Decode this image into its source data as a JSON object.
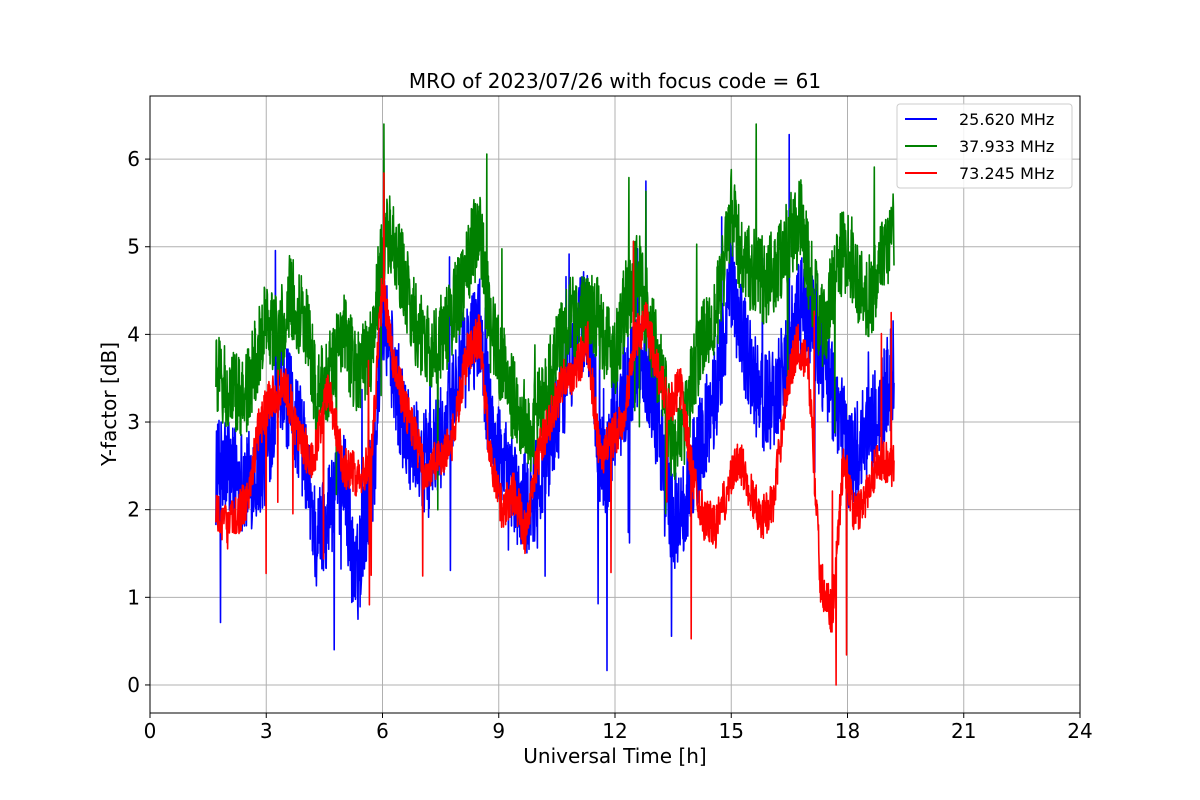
{
  "chart_data": {
    "type": "line",
    "title": "MRO of 2023/07/26 with focus code = 61",
    "xlabel": "Universal Time [h]",
    "ylabel": "Y-factor [dB]",
    "xlim": [
      0,
      24
    ],
    "ylim": [
      -0.32,
      6.72
    ],
    "xticks": [
      0,
      3,
      6,
      9,
      12,
      15,
      18,
      21,
      24
    ],
    "yticks": [
      0,
      1,
      2,
      3,
      4,
      5,
      6
    ],
    "grid": true,
    "legend_position": "top-right",
    "series": [
      {
        "name": "25.620 MHz",
        "color": "#0000ff",
        "band": 0.6,
        "x": [
          1.7,
          2.0,
          2.5,
          3.0,
          3.2,
          3.5,
          3.8,
          4.0,
          4.3,
          4.6,
          5.0,
          5.3,
          5.6,
          5.8,
          6.0,
          6.2,
          6.5,
          6.8,
          7.2,
          7.6,
          8.0,
          8.3,
          8.5,
          8.8,
          9.0,
          9.3,
          9.6,
          9.9,
          10.2,
          10.5,
          10.8,
          11.0,
          11.2,
          11.4,
          11.6,
          11.8,
          12.0,
          12.3,
          12.6,
          12.9,
          13.2,
          13.5,
          13.8,
          14.1,
          14.4,
          14.7,
          15.0,
          15.3,
          15.6,
          15.9,
          16.2,
          16.5,
          16.8,
          17.1,
          17.4,
          17.7,
          18.0,
          18.3,
          18.6,
          18.9,
          19.2
        ],
        "y": [
          2.4,
          2.5,
          2.3,
          2.6,
          3.2,
          3.3,
          3.0,
          2.6,
          1.6,
          2.0,
          2.4,
          1.1,
          2.0,
          2.6,
          4.4,
          3.8,
          3.1,
          2.7,
          2.5,
          2.9,
          3.6,
          3.9,
          4.1,
          2.9,
          2.6,
          2.3,
          2.0,
          2.2,
          2.6,
          3.1,
          3.6,
          4.0,
          4.2,
          3.9,
          2.6,
          2.5,
          3.0,
          3.4,
          3.8,
          3.5,
          2.7,
          1.8,
          2.1,
          2.6,
          3.0,
          3.6,
          4.6,
          4.0,
          3.4,
          3.2,
          3.4,
          3.9,
          4.3,
          4.2,
          3.6,
          3.3,
          2.6,
          2.7,
          2.9,
          3.2,
          3.6
        ]
      },
      {
        "name": "37.933 MHz",
        "color": "#008000",
        "band": 0.5,
        "x": [
          1.7,
          2.0,
          2.5,
          3.0,
          3.3,
          3.6,
          4.0,
          4.3,
          4.6,
          5.0,
          5.3,
          5.7,
          6.0,
          6.2,
          6.5,
          6.8,
          7.2,
          7.6,
          8.0,
          8.3,
          8.5,
          8.8,
          9.2,
          9.5,
          9.8,
          10.2,
          10.5,
          10.8,
          11.1,
          11.4,
          11.7,
          12.0,
          12.3,
          12.6,
          12.9,
          13.2,
          13.5,
          13.8,
          14.1,
          14.4,
          14.7,
          15.0,
          15.3,
          15.6,
          15.9,
          16.2,
          16.5,
          16.8,
          17.1,
          17.4,
          17.7,
          18.0,
          18.3,
          18.6,
          18.9,
          19.2
        ],
        "y": [
          3.6,
          3.3,
          3.3,
          4.2,
          3.9,
          4.4,
          4.2,
          3.3,
          3.5,
          4.0,
          3.6,
          3.8,
          5.0,
          5.2,
          4.7,
          4.2,
          3.8,
          4.0,
          4.5,
          5.0,
          5.2,
          4.0,
          3.5,
          3.1,
          2.9,
          3.3,
          3.8,
          4.2,
          4.2,
          4.3,
          4.0,
          3.8,
          4.4,
          4.7,
          4.1,
          3.5,
          2.7,
          3.0,
          3.7,
          4.1,
          4.4,
          5.4,
          4.8,
          4.7,
          4.6,
          4.8,
          5.1,
          5.3,
          4.5,
          4.0,
          4.8,
          5.0,
          4.6,
          4.4,
          4.8,
          5.2
        ]
      },
      {
        "name": "73.245 MHz",
        "color": "#ff0000",
        "band": 0.25,
        "x": [
          1.7,
          2.0,
          2.5,
          2.8,
          3.1,
          3.5,
          3.8,
          4.2,
          4.6,
          5.0,
          5.3,
          5.7,
          6.0,
          6.2,
          6.5,
          6.8,
          7.1,
          7.5,
          7.8,
          8.2,
          8.5,
          8.8,
          9.1,
          9.4,
          9.7,
          10.0,
          10.3,
          10.7,
          11.0,
          11.3,
          11.6,
          11.9,
          12.2,
          12.5,
          12.8,
          13.1,
          13.4,
          13.7,
          14.0,
          14.3,
          14.6,
          14.9,
          15.2,
          15.5,
          15.8,
          16.1,
          16.4,
          16.7,
          17.0,
          17.3,
          17.6,
          17.9,
          18.2,
          18.5,
          18.8,
          19.2
        ],
        "y": [
          2.0,
          1.8,
          2.1,
          2.9,
          3.3,
          3.4,
          2.9,
          2.5,
          3.4,
          2.5,
          2.4,
          2.5,
          4.6,
          3.9,
          3.3,
          2.9,
          2.4,
          2.6,
          2.8,
          3.8,
          4.0,
          2.5,
          2.0,
          2.2,
          1.7,
          2.6,
          3.0,
          3.5,
          3.6,
          3.9,
          2.6,
          2.8,
          3.0,
          3.9,
          4.2,
          3.6,
          3.2,
          3.4,
          2.4,
          1.9,
          1.8,
          2.2,
          2.6,
          2.2,
          1.9,
          2.1,
          3.3,
          3.9,
          3.6,
          1.2,
          0.8,
          2.6,
          1.9,
          2.2,
          2.6,
          2.5
        ]
      }
    ]
  }
}
